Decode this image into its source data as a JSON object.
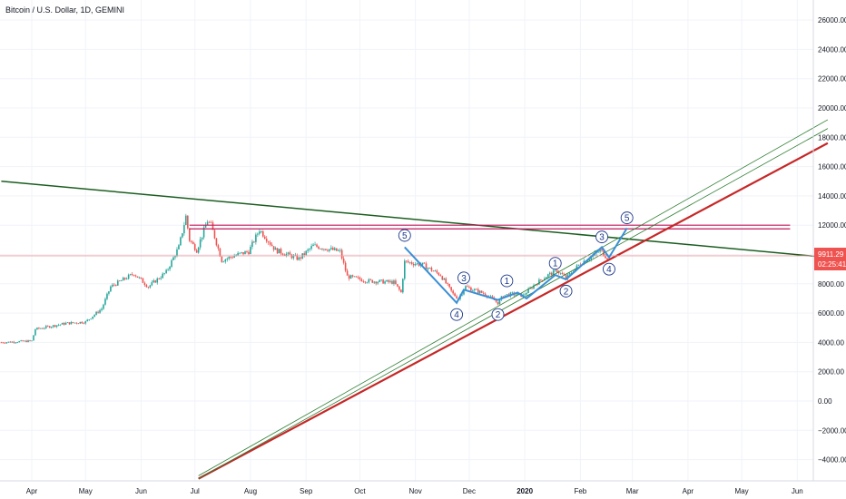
{
  "header": {
    "title": "Bitcoin / U.S. Dollar, 1D, GEMINI"
  },
  "price_badge": {
    "price": "9911.29",
    "countdown": "02:25:41",
    "color": "#ef5350"
  },
  "chart_data": {
    "type": "candlestick",
    "title": "Bitcoin / U.S. Dollar, 1D, GEMINI",
    "ylim": [
      -5000,
      27000
    ],
    "y_ticks": [
      "26000.00",
      "24000.00",
      "22000.00",
      "20000.00",
      "18000.00",
      "16000.00",
      "14000.00",
      "12000.00",
      "10000.00",
      "8000.00",
      "6000.00",
      "4000.00",
      "2000.00",
      "0.00",
      "−2000.00",
      "−4000.00"
    ],
    "y_tick_values": [
      26000,
      24000,
      22000,
      20000,
      18000,
      16000,
      14000,
      12000,
      10000,
      8000,
      6000,
      4000,
      2000,
      0,
      -2000,
      -4000
    ],
    "x_ticks": [
      {
        "label": "Apr",
        "date": "2019-04-01",
        "bold": false
      },
      {
        "label": "May",
        "date": "2019-05-01",
        "bold": false
      },
      {
        "label": "Jun",
        "date": "2019-06-01",
        "bold": false
      },
      {
        "label": "Jul",
        "date": "2019-07-01",
        "bold": false
      },
      {
        "label": "Aug",
        "date": "2019-08-01",
        "bold": false
      },
      {
        "label": "Sep",
        "date": "2019-09-01",
        "bold": false
      },
      {
        "label": "Oct",
        "date": "2019-10-01",
        "bold": false
      },
      {
        "label": "Nov",
        "date": "2019-11-01",
        "bold": false
      },
      {
        "label": "Dec",
        "date": "2019-12-01",
        "bold": false
      },
      {
        "label": "2020",
        "date": "2020-01-01",
        "bold": true
      },
      {
        "label": "Feb",
        "date": "2020-02-01",
        "bold": false
      },
      {
        "label": "Mar",
        "date": "2020-03-01",
        "bold": false
      },
      {
        "label": "Apr",
        "date": "2020-04-01",
        "bold": false
      },
      {
        "label": "May",
        "date": "2020-05-01",
        "bold": false
      },
      {
        "label": "Jun",
        "date": "2020-06-01",
        "bold": false
      }
    ],
    "price_path": [
      [
        "2019-03-15",
        4000
      ],
      [
        "2019-04-01",
        4100
      ],
      [
        "2019-04-03",
        4900
      ],
      [
        "2019-04-20",
        5300
      ],
      [
        "2019-05-01",
        5400
      ],
      [
        "2019-05-10",
        6300
      ],
      [
        "2019-05-15",
        7800
      ],
      [
        "2019-05-28",
        8700
      ],
      [
        "2019-06-05",
        7800
      ],
      [
        "2019-06-15",
        8800
      ],
      [
        "2019-06-22",
        10500
      ],
      [
        "2019-06-26",
        12600
      ],
      [
        "2019-06-28",
        11000
      ],
      [
        "2019-07-02",
        10300
      ],
      [
        "2019-07-08",
        12300
      ],
      [
        "2019-07-10",
        12000
      ],
      [
        "2019-07-16",
        9600
      ],
      [
        "2019-07-25",
        10000
      ],
      [
        "2019-07-31",
        10200
      ],
      [
        "2019-08-06",
        11700
      ],
      [
        "2019-08-15",
        10300
      ],
      [
        "2019-08-28",
        9700
      ],
      [
        "2019-09-05",
        10600
      ],
      [
        "2019-09-20",
        10200
      ],
      [
        "2019-09-24",
        8500
      ],
      [
        "2019-10-05",
        8200
      ],
      [
        "2019-10-20",
        8100
      ],
      [
        "2019-10-24",
        7400
      ],
      [
        "2019-10-26",
        9500
      ],
      [
        "2019-11-05",
        9300
      ],
      [
        "2019-11-15",
        8600
      ],
      [
        "2019-11-22",
        7300
      ],
      [
        "2019-11-25",
        7000
      ],
      [
        "2019-11-29",
        7800
      ],
      [
        "2019-12-10",
        7300
      ],
      [
        "2019-12-17",
        6700
      ],
      [
        "2019-12-20",
        7200
      ],
      [
        "2019-12-25",
        7300
      ],
      [
        "2019-12-31",
        7200
      ],
      [
        "2020-01-07",
        8000
      ],
      [
        "2020-01-14",
        8600
      ],
      [
        "2020-01-19",
        8900
      ],
      [
        "2020-01-24",
        8400
      ],
      [
        "2020-02-01",
        9400
      ],
      [
        "2020-02-09",
        10000
      ],
      [
        "2020-02-12",
        10300
      ],
      [
        "2020-02-15",
        9900
      ],
      [
        "2020-02-17",
        9700
      ]
    ],
    "trend_lines": [
      {
        "name": "descending-trendline",
        "color": "#1b5e20",
        "width": 1.5,
        "from": [
          "2019-03-15",
          15000
        ],
        "to": [
          "2020-06-18",
          9800
        ]
      },
      {
        "name": "resistance-band",
        "color": "#c2185b",
        "width": 1.2,
        "from": [
          "2019-06-28",
          12000
        ],
        "to": [
          "2020-05-28",
          12000
        ]
      },
      {
        "name": "resistance-band-lower",
        "color": "#c2185b",
        "width": 1.2,
        "from": [
          "2019-06-28",
          11750
        ],
        "to": [
          "2020-05-28",
          11750
        ]
      },
      {
        "name": "support-trendline",
        "color": "#c62828",
        "width": 2.2,
        "from": [
          "2019-07-03",
          -5300
        ],
        "to": [
          "2020-06-18",
          17600
        ]
      },
      {
        "name": "channel-outer",
        "color": "#2e7d32",
        "width": 0.8,
        "from": [
          "2019-07-03",
          -5100
        ],
        "to": [
          "2020-06-18",
          19200
        ]
      },
      {
        "name": "channel-inner",
        "color": "#2e7d32",
        "width": 0.8,
        "from": [
          "2019-07-03",
          -5300
        ],
        "to": [
          "2020-06-18",
          18600
        ]
      }
    ],
    "last_price_line": {
      "value": 9911.29,
      "color": "#ef9a9a"
    },
    "wave_path": [
      [
        "2019-10-26",
        10500
      ],
      [
        "2019-11-24",
        6700
      ],
      [
        "2019-11-28",
        7600
      ],
      [
        "2019-12-17",
        6900
      ],
      [
        "2019-12-28",
        7400
      ],
      [
        "2020-01-02",
        7000
      ],
      [
        "2020-01-18",
        8600
      ],
      [
        "2020-01-24",
        8300
      ],
      [
        "2020-02-13",
        10500
      ],
      [
        "2020-02-17",
        9800
      ],
      [
        "2020-02-27",
        11800
      ]
    ],
    "wave_color": "#3a8fd6",
    "wave_labels": [
      {
        "text": "5",
        "at": [
          "2019-10-26",
          11300
        ]
      },
      {
        "text": "4",
        "at": [
          "2019-11-24",
          5900
        ]
      },
      {
        "text": "3",
        "at": [
          "2019-11-28",
          8400
        ]
      },
      {
        "text": "2",
        "at": [
          "2019-12-17",
          5900
        ]
      },
      {
        "text": "1",
        "at": [
          "2019-12-22",
          8200
        ]
      },
      {
        "text": "1",
        "at": [
          "2020-01-18",
          9400
        ]
      },
      {
        "text": "2",
        "at": [
          "2020-01-24",
          7500
        ]
      },
      {
        "text": "3",
        "at": [
          "2020-02-13",
          11200
        ]
      },
      {
        "text": "4",
        "at": [
          "2020-02-17",
          9000
        ]
      },
      {
        "text": "5",
        "at": [
          "2020-02-27",
          12500
        ]
      }
    ],
    "grid": true
  }
}
